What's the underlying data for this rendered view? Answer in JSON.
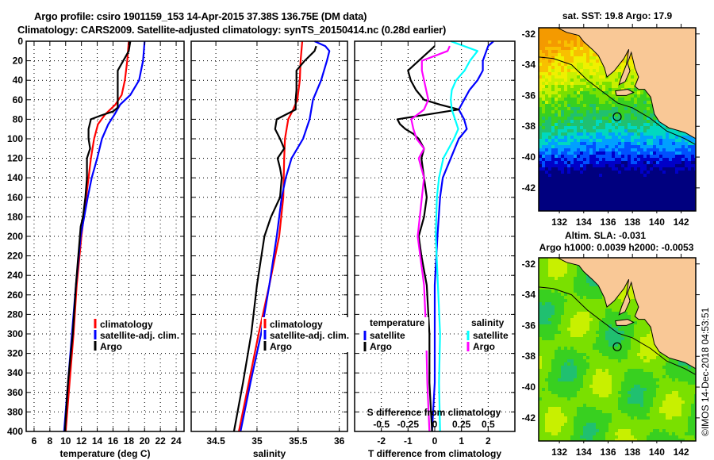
{
  "header": {
    "title_line1": "Argo profile: csiro 1901159_153 14-Apr-2015 37.38S 136.75E (DM data)",
    "title_line2": "Climatology: CARS2009. Satellite-adjusted climatology: synTS_20150414.nc (0.28d earlier)"
  },
  "colors": {
    "climatology": "#ff0000",
    "satellite": "#0000ff",
    "argo": "#000000",
    "salinity_satellite": "#00ffff",
    "salinity_argo": "#ff00ff",
    "land": "#f9c896"
  },
  "chart_data": [
    {
      "type": "line",
      "name": "temperature-profile",
      "xlabel": "temperature (deg C)",
      "ylabel": "",
      "xlim": [
        5,
        25
      ],
      "ylim": [
        400,
        0
      ],
      "xticks": [
        6,
        8,
        10,
        12,
        14,
        16,
        18,
        20,
        22,
        24
      ],
      "yticks": [
        0,
        20,
        40,
        60,
        80,
        100,
        120,
        140,
        160,
        180,
        200,
        220,
        240,
        260,
        280,
        300,
        320,
        340,
        360,
        380,
        400
      ],
      "grid": true,
      "legend_position": "lower-right",
      "series": [
        {
          "name": "climatology",
          "color": "#ff0000",
          "depth": [
            0,
            20,
            40,
            55,
            65,
            75,
            85,
            100,
            120,
            140,
            160,
            200,
            250,
            300,
            350,
            400
          ],
          "values": [
            18.0,
            17.8,
            17.5,
            17.1,
            16.3,
            15.0,
            14.1,
            13.6,
            13.2,
            12.9,
            12.6,
            12.0,
            11.4,
            11.0,
            10.5,
            10.0
          ]
        },
        {
          "name": "satellite-adj. clim.",
          "color": "#0000ff",
          "depth": [
            0,
            20,
            40,
            55,
            65,
            75,
            85,
            100,
            120,
            140,
            160,
            200,
            250,
            300,
            350,
            400
          ],
          "values": [
            20.0,
            19.8,
            19.3,
            18.2,
            16.9,
            16.2,
            15.4,
            14.6,
            14.0,
            13.3,
            12.8,
            11.9,
            11.3,
            10.8,
            10.3,
            9.8
          ]
        },
        {
          "name": "Argo",
          "color": "#000000",
          "depth": [
            0,
            5,
            10,
            20,
            30,
            40,
            50,
            60,
            68,
            72,
            76,
            80,
            90,
            100,
            110,
            115,
            120,
            140,
            160,
            180,
            190,
            200,
            250,
            300,
            350,
            400
          ],
          "values": [
            18.2,
            18.1,
            18.0,
            17.3,
            16.6,
            16.6,
            16.6,
            16.6,
            16.6,
            16.0,
            14.5,
            13.2,
            12.9,
            12.9,
            13.1,
            12.9,
            12.7,
            12.7,
            12.5,
            12.2,
            11.9,
            11.8,
            11.3,
            10.9,
            10.3,
            9.9
          ]
        }
      ]
    },
    {
      "type": "line",
      "name": "salinity-profile",
      "xlabel": "salinity",
      "ylabel": "",
      "xlim": [
        34.2,
        36.1
      ],
      "ylim": [
        400,
        0
      ],
      "xticks": [
        34.5,
        35,
        35.5,
        36
      ],
      "yticks": [
        0,
        20,
        40,
        60,
        80,
        100,
        120,
        140,
        160,
        180,
        200,
        220,
        240,
        260,
        280,
        300,
        320,
        340,
        360,
        380,
        400
      ],
      "grid": true,
      "legend_position": "lower-right",
      "series": [
        {
          "name": "climatology",
          "color": "#ff0000",
          "depth": [
            0,
            20,
            40,
            60,
            70,
            80,
            100,
            120,
            160,
            200,
            250,
            300,
            350,
            400
          ],
          "values": [
            35.55,
            35.53,
            35.52,
            35.49,
            35.44,
            35.38,
            35.34,
            35.33,
            35.32,
            35.27,
            35.15,
            35.02,
            34.9,
            34.78
          ]
        },
        {
          "name": "satellite-adj. clim.",
          "color": "#0000ff",
          "depth": [
            0,
            5,
            10,
            20,
            40,
            60,
            70,
            80,
            100,
            120,
            140,
            160,
            200,
            250,
            300,
            350,
            400
          ],
          "values": [
            35.7,
            35.83,
            35.88,
            35.85,
            35.78,
            35.68,
            35.66,
            35.64,
            35.56,
            35.42,
            35.35,
            35.3,
            35.24,
            35.15,
            35.05,
            34.92,
            34.8
          ]
        },
        {
          "name": "Argo",
          "color": "#000000",
          "depth": [
            5,
            10,
            20,
            30,
            40,
            50,
            60,
            70,
            80,
            90,
            100,
            110,
            120,
            130,
            140,
            160,
            180,
            200,
            250,
            300,
            350,
            400
          ],
          "values": [
            35.72,
            35.7,
            35.58,
            35.48,
            35.48,
            35.48,
            35.47,
            35.47,
            35.24,
            35.22,
            35.28,
            35.33,
            35.25,
            35.28,
            35.3,
            35.28,
            35.17,
            35.09,
            35.0,
            34.93,
            34.83,
            34.72
          ]
        }
      ]
    },
    {
      "type": "line",
      "name": "difference-profile",
      "xlabel": "T difference from climatology",
      "xlim": [
        -3,
        3
      ],
      "ylim": [
        400,
        0
      ],
      "xticks": [
        -2,
        -1,
        0,
        1,
        2
      ],
      "secondary_xlabel": "S difference from climatology",
      "secondary_xlim": [
        -0.75,
        0.75
      ],
      "secondary_xticks": [
        -0.5,
        -0.25,
        0,
        0.25,
        0.5
      ],
      "grid": true,
      "legend_position": "lower-center",
      "legend_groups": [
        {
          "title": "temperature",
          "entries": [
            "satellite",
            "Argo"
          ]
        },
        {
          "title": "salinity",
          "entries": [
            "satellite",
            "Argo"
          ]
        }
      ],
      "series": [
        {
          "name": "temperature satellite",
          "color": "#0000ff",
          "axis": "T",
          "depth": [
            0,
            5,
            20,
            30,
            40,
            50,
            60,
            70,
            80,
            90,
            100,
            120,
            140,
            160,
            200,
            250,
            300,
            350,
            400
          ],
          "values": [
            2.2,
            2.0,
            1.8,
            1.8,
            1.6,
            1.3,
            1.1,
            0.9,
            1.1,
            1.2,
            0.9,
            0.6,
            0.3,
            0.2,
            0.1,
            0.0,
            0.0,
            0.0,
            -0.1
          ]
        },
        {
          "name": "temperature Argo",
          "color": "#000000",
          "axis": "T",
          "depth": [
            5,
            10,
            20,
            30,
            40,
            50,
            60,
            65,
            70,
            80,
            85,
            90,
            95,
            100,
            110,
            120,
            140,
            160,
            180,
            200,
            220,
            250,
            300,
            350,
            400
          ],
          "values": [
            0.0,
            -0.2,
            -0.6,
            -1.0,
            -0.9,
            -0.7,
            -0.4,
            0.2,
            0.9,
            -1.4,
            -1.3,
            -1.1,
            -0.8,
            -0.6,
            -0.4,
            -0.5,
            -0.4,
            -0.3,
            -0.4,
            -0.6,
            -0.5,
            -0.3,
            -0.2,
            -0.2,
            -0.1
          ]
        },
        {
          "name": "salinity satellite",
          "color": "#00ffff",
          "axis": "S",
          "depth": [
            0,
            10,
            20,
            30,
            40,
            50,
            60,
            70,
            80,
            90,
            100,
            120,
            140,
            160,
            200,
            250,
            300,
            350,
            400
          ],
          "values": [
            0.15,
            0.4,
            0.33,
            0.28,
            0.2,
            0.16,
            0.15,
            0.16,
            0.19,
            0.22,
            0.18,
            0.08,
            0.04,
            0.02,
            0.01,
            0.03,
            0.05,
            0.04,
            0.05
          ]
        },
        {
          "name": "salinity Argo",
          "color": "#ff00ff",
          "axis": "S",
          "depth": [
            5,
            10,
            20,
            30,
            40,
            50,
            60,
            70,
            80,
            90,
            100,
            110,
            120,
            140,
            160,
            200,
            250,
            300,
            350,
            400
          ],
          "values": [
            0.14,
            0.12,
            -0.12,
            -0.12,
            -0.1,
            -0.08,
            -0.06,
            -0.1,
            -0.22,
            -0.2,
            -0.17,
            -0.1,
            -0.15,
            -0.1,
            -0.12,
            -0.16,
            -0.1,
            -0.08,
            -0.07,
            -0.05
          ]
        }
      ]
    },
    {
      "type": "heatmap",
      "name": "sst-map",
      "title": "sat. SST: 19.8 Argo: 17.9",
      "xticks": [
        132,
        134,
        136,
        138,
        140,
        142
      ],
      "yticks": [
        -32,
        -34,
        -36,
        -38,
        -40,
        -42
      ],
      "xlim": [
        130.3,
        143.2
      ],
      "ylim": [
        -43.5,
        -31.6
      ],
      "argo_marker": {
        "lon": 136.75,
        "lat": -37.38
      }
    },
    {
      "type": "heatmap",
      "name": "sla-map",
      "title_line1": "Altim. SLA: -0.031",
      "title_line2": "Argo h1000: 0.0039 h2000: -0.0053",
      "xticks": [
        132,
        134,
        136,
        138,
        140,
        142
      ],
      "yticks": [
        -32,
        -34,
        -36,
        -38,
        -40,
        -42
      ],
      "xlim": [
        130.3,
        143.2
      ],
      "ylim": [
        -43.5,
        -31.6
      ],
      "argo_marker": {
        "lon": 136.75,
        "lat": -37.38
      }
    }
  ],
  "footer": {
    "credit": "©IMOS 14-Dec-2018 04:53:51"
  }
}
